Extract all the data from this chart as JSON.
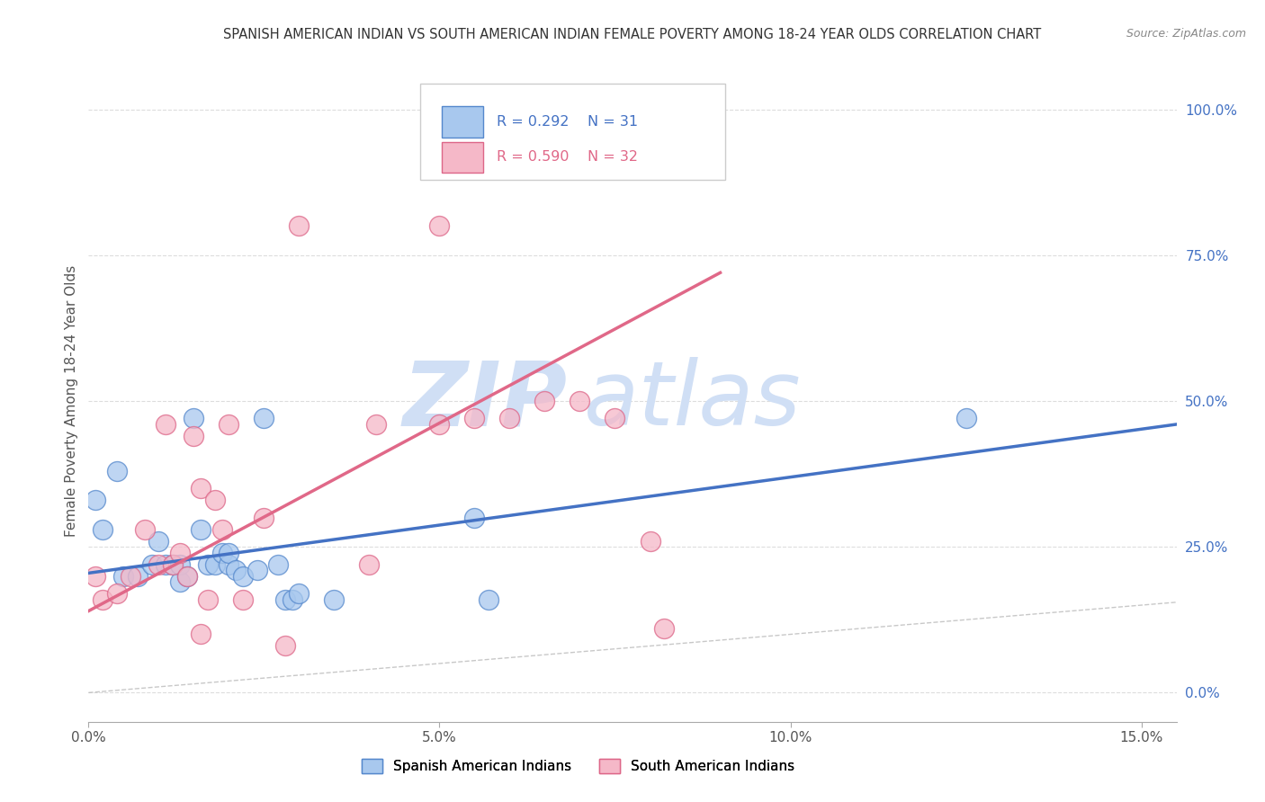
{
  "title": "SPANISH AMERICAN INDIAN VS SOUTH AMERICAN INDIAN FEMALE POVERTY AMONG 18-24 YEAR OLDS CORRELATION CHART",
  "source": "Source: ZipAtlas.com",
  "ylabel": "Female Poverty Among 18-24 Year Olds",
  "xlim": [
    0.0,
    0.155
  ],
  "ylim": [
    -0.05,
    1.05
  ],
  "xtick_vals": [
    0.0,
    0.05,
    0.1,
    0.15
  ],
  "xtick_labels": [
    "0.0%",
    "5.0%",
    "10.0%",
    "15.0%"
  ],
  "ytick_vals": [
    0.0,
    0.25,
    0.5,
    0.75,
    1.0
  ],
  "ytick_labels_right": [
    "0.0%",
    "25.0%",
    "50.0%",
    "75.0%",
    "100.0%"
  ],
  "legend_R1": "R = 0.292",
  "legend_N1": "N = 31",
  "legend_R2": "R = 0.590",
  "legend_N2": "N = 32",
  "legend_label1": "Spanish American Indians",
  "legend_label2": "South American Indians",
  "color_blue": "#A8C8EE",
  "color_pink": "#F5B8C8",
  "edge_blue": "#5588CC",
  "edge_pink": "#DD6688",
  "line_blue": "#4472C4",
  "line_pink": "#E06888",
  "watermark_color": "#D0DFF5",
  "bg_color": "#FFFFFF",
  "grid_color": "#DDDDDD",
  "blue_scatter_x": [
    0.001,
    0.002,
    0.004,
    0.005,
    0.007,
    0.009,
    0.01,
    0.011,
    0.012,
    0.013,
    0.013,
    0.014,
    0.015,
    0.016,
    0.017,
    0.018,
    0.019,
    0.02,
    0.02,
    0.021,
    0.022,
    0.024,
    0.025,
    0.027,
    0.028,
    0.029,
    0.03,
    0.035,
    0.055,
    0.057,
    0.125
  ],
  "blue_scatter_y": [
    0.33,
    0.28,
    0.38,
    0.2,
    0.2,
    0.22,
    0.26,
    0.22,
    0.22,
    0.19,
    0.22,
    0.2,
    0.47,
    0.28,
    0.22,
    0.22,
    0.24,
    0.22,
    0.24,
    0.21,
    0.2,
    0.21,
    0.47,
    0.22,
    0.16,
    0.16,
    0.17,
    0.16,
    0.3,
    0.16,
    0.47
  ],
  "pink_scatter_x": [
    0.001,
    0.002,
    0.004,
    0.006,
    0.008,
    0.01,
    0.011,
    0.012,
    0.013,
    0.014,
    0.015,
    0.016,
    0.017,
    0.018,
    0.019,
    0.02,
    0.022,
    0.025,
    0.028,
    0.03,
    0.04,
    0.041,
    0.05,
    0.05,
    0.055,
    0.06,
    0.065,
    0.07,
    0.075,
    0.08,
    0.082,
    0.016
  ],
  "pink_scatter_y": [
    0.2,
    0.16,
    0.17,
    0.2,
    0.28,
    0.22,
    0.46,
    0.22,
    0.24,
    0.2,
    0.44,
    0.35,
    0.16,
    0.33,
    0.28,
    0.46,
    0.16,
    0.3,
    0.08,
    0.8,
    0.22,
    0.46,
    0.8,
    0.46,
    0.47,
    0.47,
    0.5,
    0.5,
    0.47,
    0.26,
    0.11,
    0.1
  ],
  "blue_line_x": [
    0.0,
    0.155
  ],
  "blue_line_y": [
    0.205,
    0.46
  ],
  "pink_line_x": [
    0.0,
    0.09
  ],
  "pink_line_y": [
    0.14,
    0.72
  ]
}
